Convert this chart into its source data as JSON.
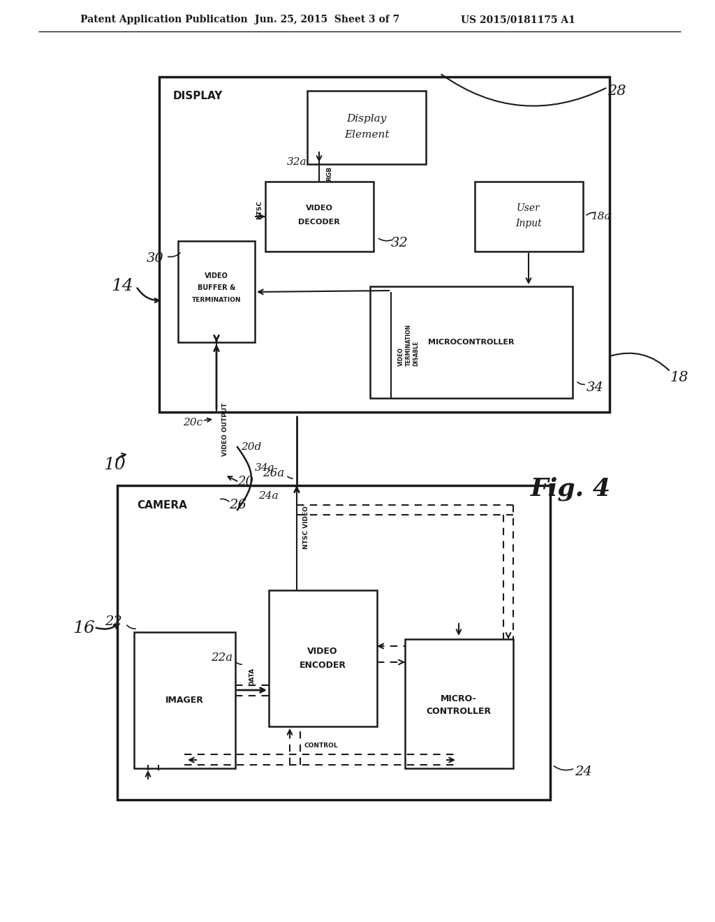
{
  "bg_color": "#ffffff",
  "line_color": "#1a1a1a",
  "header_left": "Patent Application Publication",
  "header_mid": "Jun. 25, 2015  Sheet 3 of 7",
  "header_right": "US 2015/0181175 A1",
  "fig_label": "Fig. 4"
}
